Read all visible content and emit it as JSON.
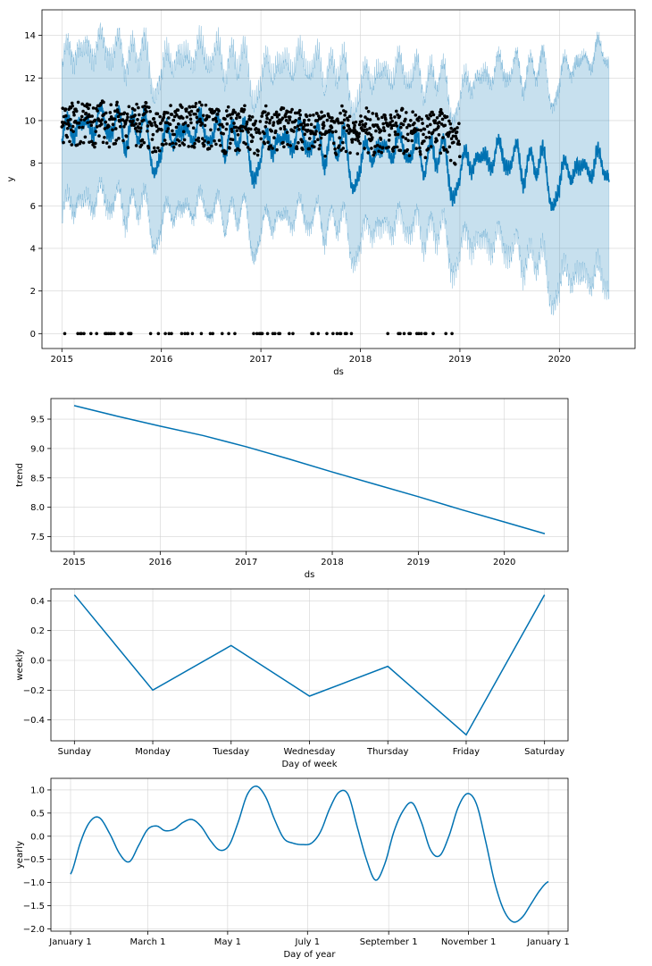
{
  "colors": {
    "line": "#0072B2",
    "band": "#0072B2",
    "points": "#000000",
    "grid": "#d3d3d3",
    "background": "#ffffff"
  },
  "chart_data": [
    {
      "type": "scatter",
      "name": "forecast",
      "xlabel": "ds",
      "ylabel": "y",
      "xlim": [
        2014.8,
        2020.76
      ],
      "ylim": [
        -0.7,
        15.2
      ],
      "xticks": [
        2015,
        2016,
        2017,
        2018,
        2019,
        2020
      ],
      "yticks": [
        0,
        2,
        4,
        6,
        8,
        10,
        12,
        14
      ],
      "xtick_labels": [
        "2015",
        "2016",
        "2017",
        "2018",
        "2019",
        "2020"
      ],
      "ytick_labels": [
        "0",
        "2",
        "4",
        "6",
        "8",
        "10",
        "12",
        "14"
      ],
      "grid": true,
      "history_end": 2019.0,
      "forecast_end": 2020.5,
      "band_width_history": 3.6,
      "band_width_future_growth": 1.8,
      "observed_levels": [
        7.9,
        9.0,
        9.5,
        10.0,
        10.4
      ]
    },
    {
      "type": "line",
      "name": "trend",
      "xlabel": "ds",
      "ylabel": "trend",
      "xlim": [
        2014.73,
        2020.74
      ],
      "ylim": [
        7.25,
        9.85
      ],
      "xticks": [
        2015,
        2016,
        2017,
        2018,
        2019,
        2020
      ],
      "yticks": [
        7.5,
        8.0,
        8.5,
        9.0,
        9.5
      ],
      "xtick_labels": [
        "2015",
        "2016",
        "2017",
        "2018",
        "2019",
        "2020"
      ],
      "ytick_labels": [
        "7.5",
        "8.0",
        "8.5",
        "9.0",
        "9.5"
      ],
      "grid": true,
      "x": [
        2015.0,
        2015.5,
        2016.0,
        2016.5,
        2017.0,
        2017.5,
        2018.0,
        2018.5,
        2019.0,
        2019.5,
        2020.0,
        2020.47
      ],
      "y": [
        9.73,
        9.55,
        9.38,
        9.22,
        9.03,
        8.82,
        8.6,
        8.39,
        8.18,
        7.96,
        7.75,
        7.55
      ]
    },
    {
      "type": "line",
      "name": "weekly",
      "xlabel": "Day of week",
      "ylabel": "weekly",
      "xlim": [
        -0.3,
        6.3
      ],
      "ylim": [
        -0.54,
        0.48
      ],
      "categories": [
        "Sunday",
        "Monday",
        "Tuesday",
        "Wednesday",
        "Thursday",
        "Friday",
        "Saturday"
      ],
      "values": [
        0.44,
        -0.2,
        0.1,
        -0.24,
        -0.04,
        -0.5,
        0.44
      ],
      "yticks": [
        -0.4,
        -0.2,
        0.0,
        0.2,
        0.4
      ],
      "ytick_labels": [
        "−0.4",
        "−0.2",
        "0.0",
        "0.2",
        "0.4"
      ],
      "grid": true
    },
    {
      "type": "line",
      "name": "yearly",
      "xlabel": "Day of year",
      "ylabel": "yearly",
      "xlim": [
        -15,
        380
      ],
      "ylim": [
        -2.05,
        1.25
      ],
      "xticks": [
        0,
        59,
        120,
        181,
        243,
        304,
        365
      ],
      "xtick_labels": [
        "January 1",
        "March 1",
        "May 1",
        "July 1",
        "September 1",
        "November 1",
        "January 1"
      ],
      "yticks": [
        -2.0,
        -1.5,
        -1.0,
        -0.5,
        0.0,
        0.5,
        1.0
      ],
      "ytick_labels": [
        "−2.0",
        "−1.5",
        "−1.0",
        "−0.5",
        "0.0",
        "0.5",
        "1.0"
      ],
      "grid": true,
      "x": [
        0,
        8,
        15,
        22,
        30,
        38,
        45,
        52,
        59,
        66,
        72,
        79,
        86,
        93,
        100,
        107,
        114,
        121,
        128,
        135,
        142,
        149,
        156,
        163,
        170,
        177,
        184,
        191,
        198,
        205,
        212,
        219,
        226,
        233,
        240,
        247,
        254,
        261,
        268,
        275,
        282,
        289,
        296,
        303,
        310,
        317,
        324,
        331,
        338,
        345,
        352,
        359,
        365
      ],
      "y": [
        -0.82,
        -0.1,
        0.32,
        0.4,
        0.05,
        -0.4,
        -0.55,
        -0.2,
        0.15,
        0.22,
        0.12,
        0.15,
        0.3,
        0.36,
        0.2,
        -0.1,
        -0.3,
        -0.2,
        0.3,
        0.9,
        1.08,
        0.85,
        0.35,
        -0.05,
        -0.15,
        -0.18,
        -0.15,
        0.1,
        0.6,
        0.95,
        0.9,
        0.2,
        -0.5,
        -0.95,
        -0.6,
        0.1,
        0.55,
        0.72,
        0.3,
        -0.3,
        -0.42,
        0.0,
        0.62,
        0.92,
        0.7,
        -0.1,
        -1.0,
        -1.6,
        -1.85,
        -1.75,
        -1.45,
        -1.15,
        -0.98
      ]
    }
  ]
}
